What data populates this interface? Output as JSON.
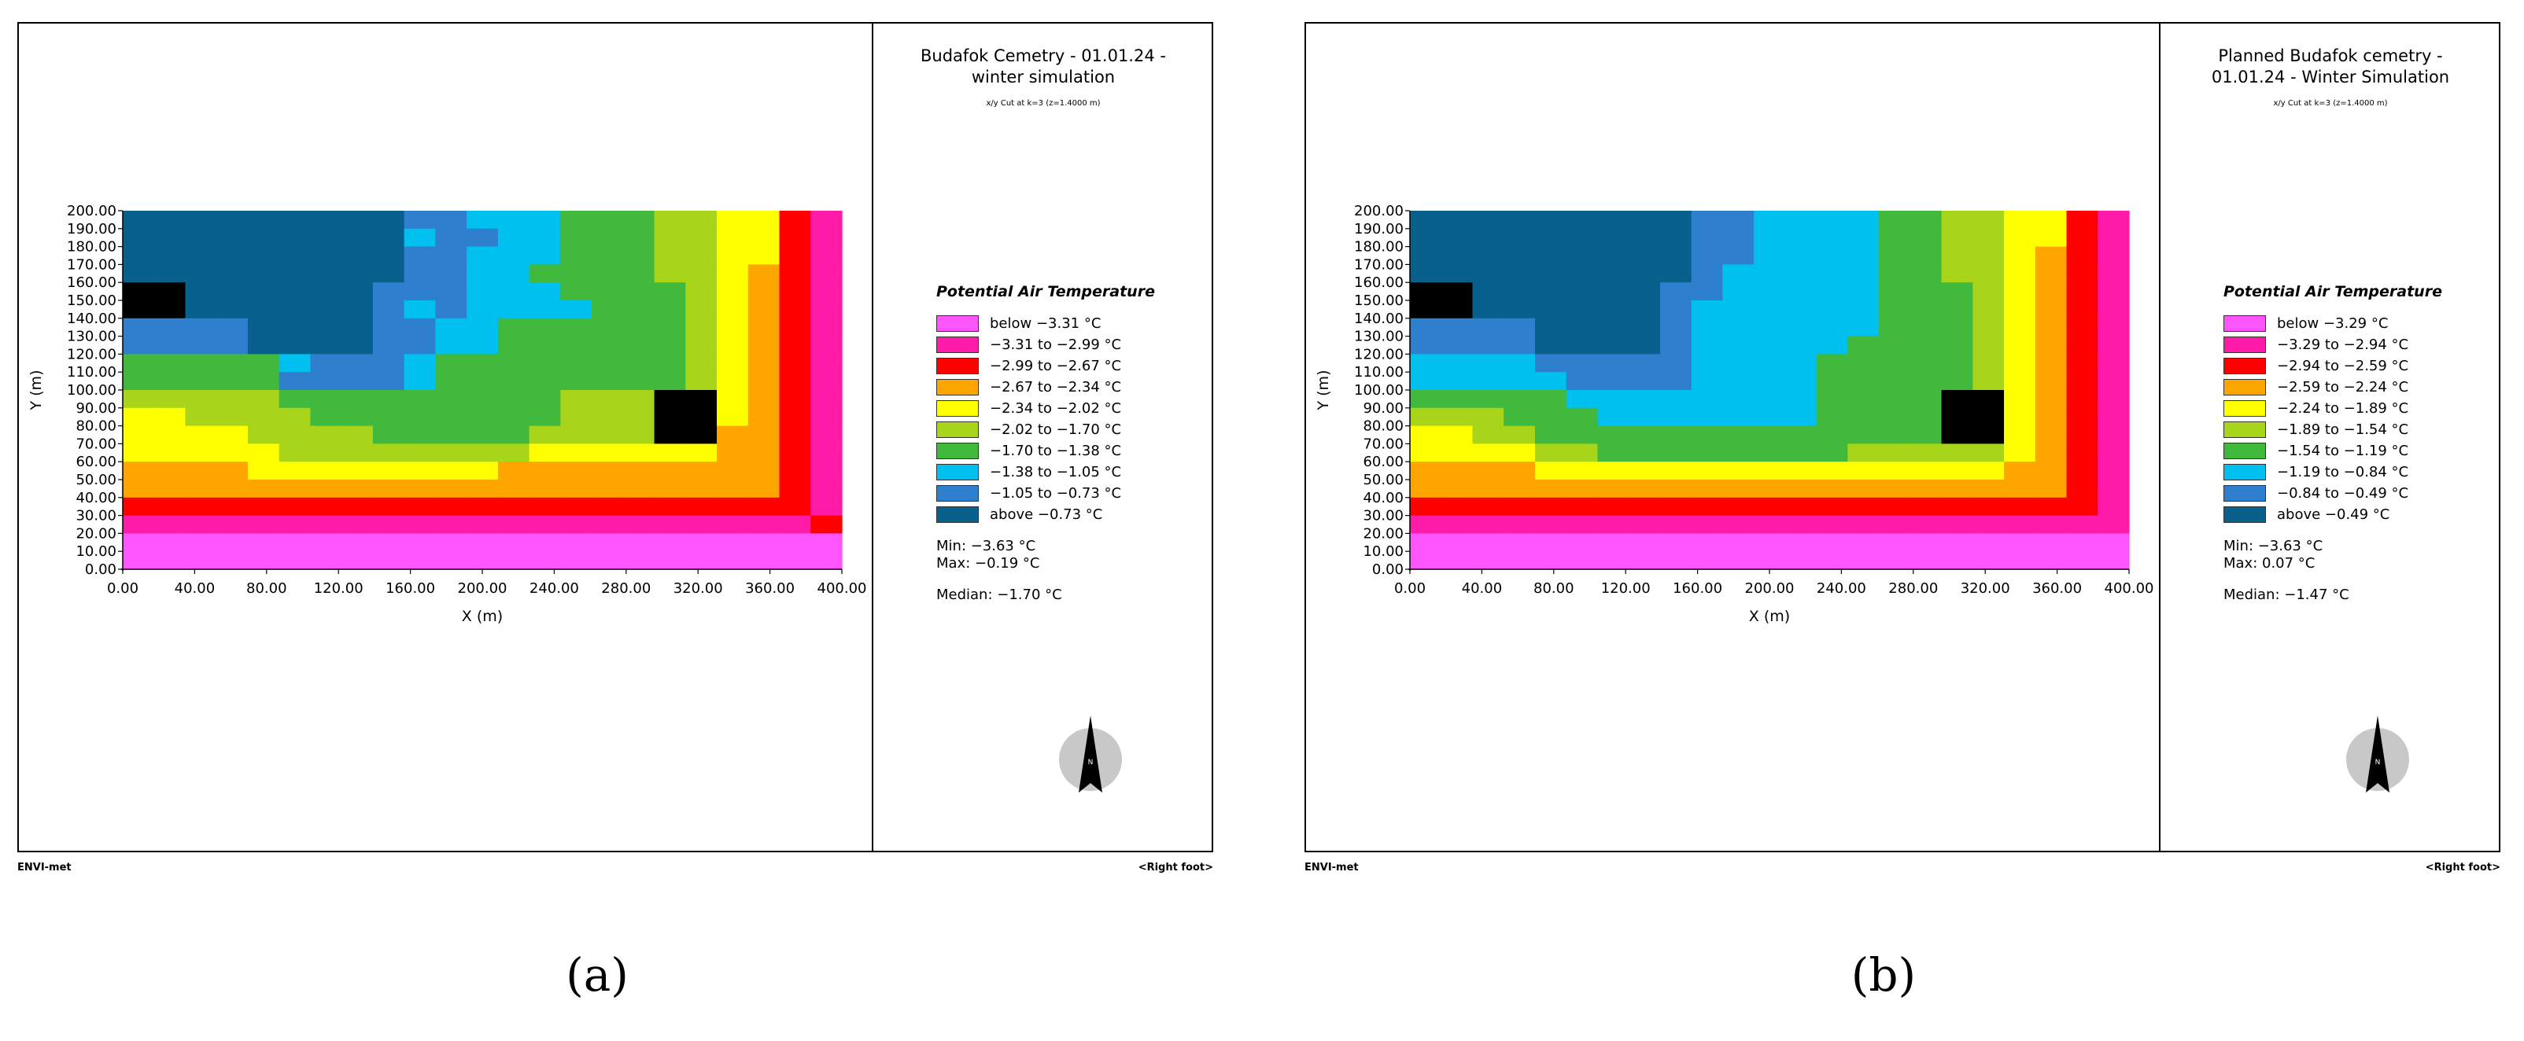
{
  "panels": [
    {
      "id": "a",
      "title": "Budafok Cemetry - 01.01.24 -\nwinter simulation",
      "subtitle": "x/y Cut at k=3 (z=1.4000 m)",
      "legend_title": "Potential Air Temperature",
      "legend": [
        {
          "label": "below −3.31 °C",
          "color": "#ff55ff"
        },
        {
          "label": "−3.31 to −2.99 °C",
          "color": "#ff1aa8"
        },
        {
          "label": "−2.99 to −2.67 °C",
          "color": "#ff0000"
        },
        {
          "label": "−2.67 to −2.34 °C",
          "color": "#ffa500"
        },
        {
          "label": "−2.34 to −2.02 °C",
          "color": "#ffff00"
        },
        {
          "label": "−2.02 to −1.70 °C",
          "color": "#a8d419"
        },
        {
          "label": "−1.70 to −1.38 °C",
          "color": "#41b93c"
        },
        {
          "label": "−1.38 to −1.05 °C",
          "color": "#00c0f0"
        },
        {
          "label": "−1.05 to −0.73 °C",
          "color": "#2e7fce"
        },
        {
          "label": "above −0.73 °C",
          "color": "#08608c"
        }
      ],
      "min": "Min: −3.63 °C",
      "max": "Max: −0.19 °C",
      "median": "Median: −1.70 °C",
      "footer_left": "ENVI-met",
      "footer_right": "<Right foot>",
      "caption": "(a)"
    },
    {
      "id": "b",
      "title": "Planned Budafok cemetry -\n01.01.24 - Winter Simulation",
      "subtitle": "x/y Cut at k=3 (z=1.4000 m)",
      "legend_title": "Potential Air Temperature",
      "legend": [
        {
          "label": "below −3.29 °C",
          "color": "#ff55ff"
        },
        {
          "label": "−3.29 to −2.94 °C",
          "color": "#ff1aa8"
        },
        {
          "label": "−2.94 to −2.59 °C",
          "color": "#ff0000"
        },
        {
          "label": "−2.59 to −2.24 °C",
          "color": "#ffa500"
        },
        {
          "label": "−2.24 to −1.89 °C",
          "color": "#ffff00"
        },
        {
          "label": "−1.89 to −1.54 °C",
          "color": "#a8d419"
        },
        {
          "label": "−1.54 to −1.19 °C",
          "color": "#41b93c"
        },
        {
          "label": "−1.19 to −0.84 °C",
          "color": "#00c0f0"
        },
        {
          "label": "−0.84 to −0.49 °C",
          "color": "#2e7fce"
        },
        {
          "label": "above −0.49 °C",
          "color": "#08608c"
        }
      ],
      "min": "Min: −3.63 °C",
      "max": "Max: 0.07 °C",
      "median": "Median: −1.47 °C",
      "footer_left": "ENVI-met",
      "footer_right": "<Right foot>",
      "caption": "(b)"
    }
  ],
  "chart_data": [
    {
      "type": "heatmap",
      "xlabel": "X (m)",
      "ylabel": "Y (m)",
      "xlim": [
        0,
        400
      ],
      "ylim": [
        0,
        200
      ],
      "x_ticks": [
        "0.00",
        "40.00",
        "80.00",
        "120.00",
        "160.00",
        "200.00",
        "240.00",
        "280.00",
        "320.00",
        "360.00",
        "400.00"
      ],
      "y_ticks": [
        "0.00",
        "10.00",
        "20.00",
        "30.00",
        "40.00",
        "50.00",
        "60.00",
        "70.00",
        "80.00",
        "90.00",
        "100.00",
        "110.00",
        "120.00",
        "130.00",
        "140.00",
        "150.00",
        "160.00",
        "170.00",
        "180.00",
        "190.00",
        "200.00"
      ],
      "cell_size_m": [
        8,
        10
      ],
      "class_codes": "0 = below lowest threshold (magenta) ... 9 = above highest threshold (dark blue), X = building",
      "rows_from_top": [
        "99999999988777666554421",
        "99999999978877666554421",
        "99999999988777666554421",
        "99999999988776666554321",
        "XX999999888777666654321",
        "XX999999878777766654321",
        "88889999887766666654321",
        "88889999887766666654321",
        "66666788876666666654321",
        "66666888876666666654321",
        "55555666666666555XX4321",
        "44555566666666555XX4321",
        "44445555666665555XX3321",
        "44444555555554444443321",
        "33334444444433333333321",
        "33333333333333333333321",
        "22222222222222222222221",
        "11111111111111111111112",
        "00000000000000000000000",
        "00000000000000000000000"
      ],
      "legend_title": "Potential Air Temperature",
      "min": -3.63,
      "max": -0.19,
      "median": -1.7
    },
    {
      "type": "heatmap",
      "xlabel": "X (m)",
      "ylabel": "Y (m)",
      "xlim": [
        0,
        400
      ],
      "ylim": [
        0,
        200
      ],
      "x_ticks": [
        "0.00",
        "40.00",
        "80.00",
        "120.00",
        "160.00",
        "200.00",
        "240.00",
        "280.00",
        "320.00",
        "360.00",
        "400.00"
      ],
      "y_ticks": [
        "0.00",
        "10.00",
        "20.00",
        "30.00",
        "40.00",
        "50.00",
        "60.00",
        "70.00",
        "80.00",
        "90.00",
        "100.00",
        "110.00",
        "120.00",
        "130.00",
        "140.00",
        "150.00",
        "160.00",
        "170.00",
        "180.00",
        "190.00",
        "200.00"
      ],
      "cell_size_m": [
        8,
        10
      ],
      "class_codes": "0 = below lowest threshold (magenta) ... 9 = above highest threshold (dark blue), X = building",
      "rows_from_top": [
        "99999999988777766554421",
        "99999999988777766554421",
        "99999999988777766554321",
        "99999999987777766554321",
        "XX999999887777766654321",
        "XX999999877777766654321",
        "88889999877777766654321",
        "88889999877777666654321",
        "77778888877776666654321",
        "77777888877776666654321",
        "66666777777776666XX4321",
        "55566677777776666XX4321",
        "44556666666666666XX4321",
        "44445566666666555554321",
        "33334444444444444443321",
        "33333333333333333333321",
        "22222222222222222222221",
        "11111111111111111111111",
        "00000000000000000000000",
        "00000000000000000000000"
      ],
      "legend_title": "Potential Air Temperature",
      "min": -3.63,
      "max": 0.07,
      "median": -1.47
    }
  ]
}
